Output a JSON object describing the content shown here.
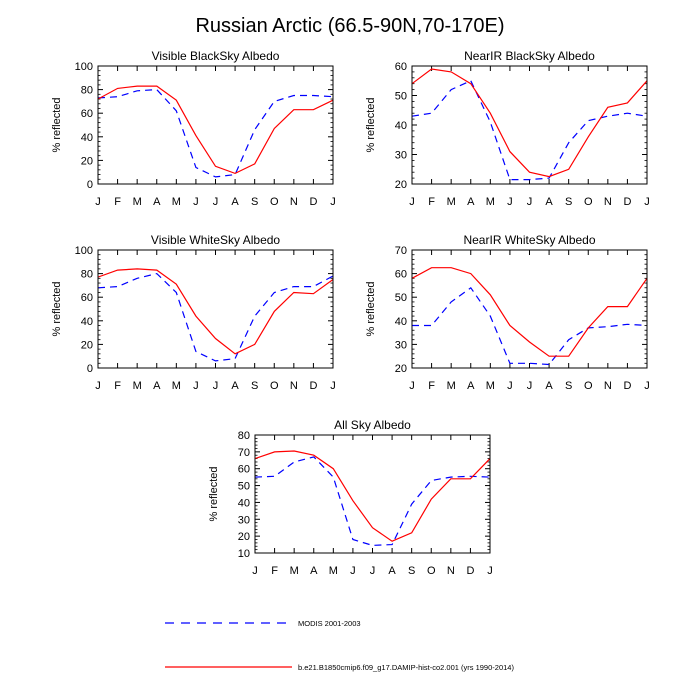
{
  "figure": {
    "title": "Russian Arctic (66.5-90N,70-170E)"
  },
  "legend": [
    {
      "name": "MODIS 2001-2003",
      "color": "#0000ff",
      "dash": "dashed"
    },
    {
      "name": "b.e21.B1850cmip6.f09_g17.DAMIP-hist-co2.001 (yrs 1990-2014)",
      "color": "#ff0000",
      "dash": "solid"
    }
  ],
  "chart_data": [
    {
      "type": "line",
      "title": "Visible BlackSky Albedo",
      "xlabel": "",
      "ylabel": "% reflected",
      "categories": [
        "J",
        "F",
        "M",
        "A",
        "M",
        "J",
        "J",
        "A",
        "S",
        "O",
        "N",
        "D",
        "J"
      ],
      "ylim": [
        0,
        100
      ],
      "yticks": [
        0,
        20,
        40,
        60,
        80,
        100
      ],
      "series": [
        {
          "name": "MODIS 2001-2003",
          "values": [
            73,
            74,
            79,
            80,
            62,
            14,
            6,
            8,
            46,
            70,
            75,
            75,
            74
          ]
        },
        {
          "name": "b.e21.B1850cmip6.f09_g17.DAMIP-hist-co2.001 (yrs 1990-2014)",
          "values": [
            72,
            81,
            83,
            83,
            71,
            41,
            15,
            9,
            17,
            47,
            63,
            63,
            71
          ]
        }
      ]
    },
    {
      "type": "line",
      "title": "NearIR BlackSky Albedo",
      "xlabel": "",
      "ylabel": "% reflected",
      "categories": [
        "J",
        "F",
        "M",
        "A",
        "M",
        "J",
        "J",
        "A",
        "S",
        "O",
        "N",
        "D",
        "J"
      ],
      "ylim": [
        20,
        60
      ],
      "yticks": [
        20,
        30,
        40,
        50,
        60
      ],
      "series": [
        {
          "name": "MODIS 2001-2003",
          "values": [
            43,
            44,
            52,
            55,
            41,
            21.5,
            21.5,
            22,
            34,
            41.5,
            43,
            44,
            43
          ]
        },
        {
          "name": "b.e21.B1850cmip6.f09_g17.DAMIP-hist-co2.001 (yrs 1990-2014)",
          "values": [
            54,
            59,
            58,
            54,
            44,
            31,
            24,
            22.5,
            25,
            36,
            46,
            47.5,
            55
          ]
        }
      ]
    },
    {
      "type": "line",
      "title": "Visible WhiteSky Albedo",
      "xlabel": "",
      "ylabel": "% reflected",
      "categories": [
        "J",
        "F",
        "M",
        "A",
        "M",
        "J",
        "J",
        "A",
        "S",
        "O",
        "N",
        "D",
        "J"
      ],
      "ylim": [
        0,
        100
      ],
      "yticks": [
        0,
        20,
        40,
        60,
        80,
        100
      ],
      "series": [
        {
          "name": "MODIS 2001-2003",
          "values": [
            68,
            69,
            76,
            80,
            64,
            14,
            6,
            8,
            44,
            64,
            69,
            69,
            78
          ]
        },
        {
          "name": "b.e21.B1850cmip6.f09_g17.DAMIP-hist-co2.001 (yrs 1990-2014)",
          "values": [
            77,
            83,
            84,
            83,
            71,
            44,
            25,
            12,
            20,
            48,
            64,
            63,
            75
          ]
        }
      ]
    },
    {
      "type": "line",
      "title": "NearIR WhiteSky Albedo",
      "xlabel": "",
      "ylabel": "% reflected",
      "categories": [
        "J",
        "F",
        "M",
        "A",
        "M",
        "J",
        "J",
        "A",
        "S",
        "O",
        "N",
        "D",
        "J"
      ],
      "ylim": [
        20,
        70
      ],
      "yticks": [
        20,
        30,
        40,
        50,
        60,
        70
      ],
      "series": [
        {
          "name": "MODIS 2001-2003",
          "values": [
            38,
            38,
            48,
            54,
            42,
            22,
            22,
            21.5,
            32,
            37,
            37.5,
            38.5,
            38
          ]
        },
        {
          "name": "b.e21.B1850cmip6.f09_g17.DAMIP-hist-co2.001 (yrs 1990-2014)",
          "values": [
            58,
            62.5,
            62.5,
            60,
            51,
            38,
            31,
            25,
            25,
            37,
            46,
            46,
            58
          ]
        }
      ]
    },
    {
      "type": "line",
      "title": "All Sky Albedo",
      "xlabel": "",
      "ylabel": "% reflected",
      "categories": [
        "J",
        "F",
        "M",
        "A",
        "M",
        "J",
        "J",
        "A",
        "S",
        "O",
        "N",
        "D",
        "J"
      ],
      "ylim": [
        10,
        80
      ],
      "yticks": [
        10,
        20,
        30,
        40,
        50,
        60,
        70,
        80
      ],
      "series": [
        {
          "name": "MODIS 2001-2003",
          "values": [
            55,
            55.5,
            64,
            67,
            55,
            18,
            14.5,
            15,
            39,
            53,
            55,
            55.5,
            55
          ]
        },
        {
          "name": "b.e21.B1850cmip6.f09_g17.DAMIP-hist-co2.001 (yrs 1990-2014)",
          "values": [
            66,
            70,
            70.5,
            68,
            60,
            41,
            25,
            17,
            22,
            42,
            54,
            54,
            66
          ]
        }
      ]
    }
  ]
}
